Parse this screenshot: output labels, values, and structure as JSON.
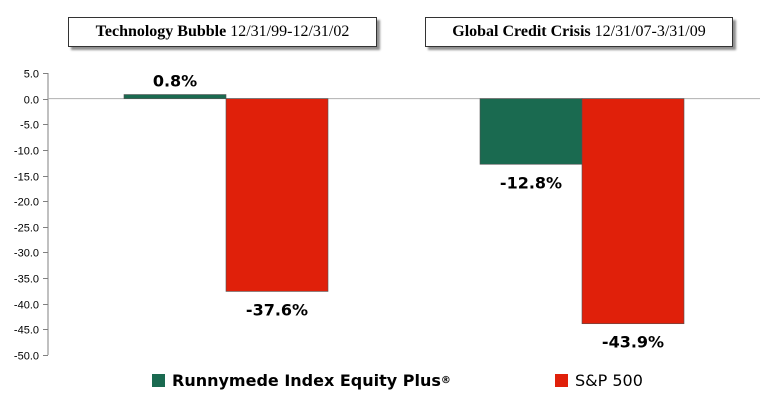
{
  "chart_data": {
    "type": "bar",
    "categories": [
      {
        "name": "Technology Bubble",
        "period": "12/31/99-12/31/02"
      },
      {
        "name": "Global Credit Crisis",
        "period": "12/31/07-3/31/09"
      }
    ],
    "series": [
      {
        "name": "Runnymede Index Equity Plus",
        "mark": "®",
        "color": "#1a6a50",
        "values": [
          0.8,
          -12.8
        ],
        "labels": [
          "0.8%",
          "-12.8%"
        ]
      },
      {
        "name": "S&P 500",
        "mark": "",
        "color": "#e0200a",
        "values": [
          -37.6,
          -43.9
        ],
        "labels": [
          "-37.6%",
          "-43.9%"
        ]
      }
    ],
    "ylim": [
      -50,
      5
    ],
    "yticks": [
      5,
      0,
      -5,
      -10,
      -15,
      -20,
      -25,
      -30,
      -35,
      -40,
      -45,
      -50
    ],
    "ytick_labels": [
      "5.0",
      "0.0",
      "-5.0",
      "-10.0",
      "-15.0",
      "-20.0",
      "-25.0",
      "-30.0",
      "-35.0",
      "-40.0",
      "-45.0",
      "-50.0"
    ],
    "title": "",
    "xlabel": "",
    "ylabel": "",
    "legend": "bottom"
  }
}
